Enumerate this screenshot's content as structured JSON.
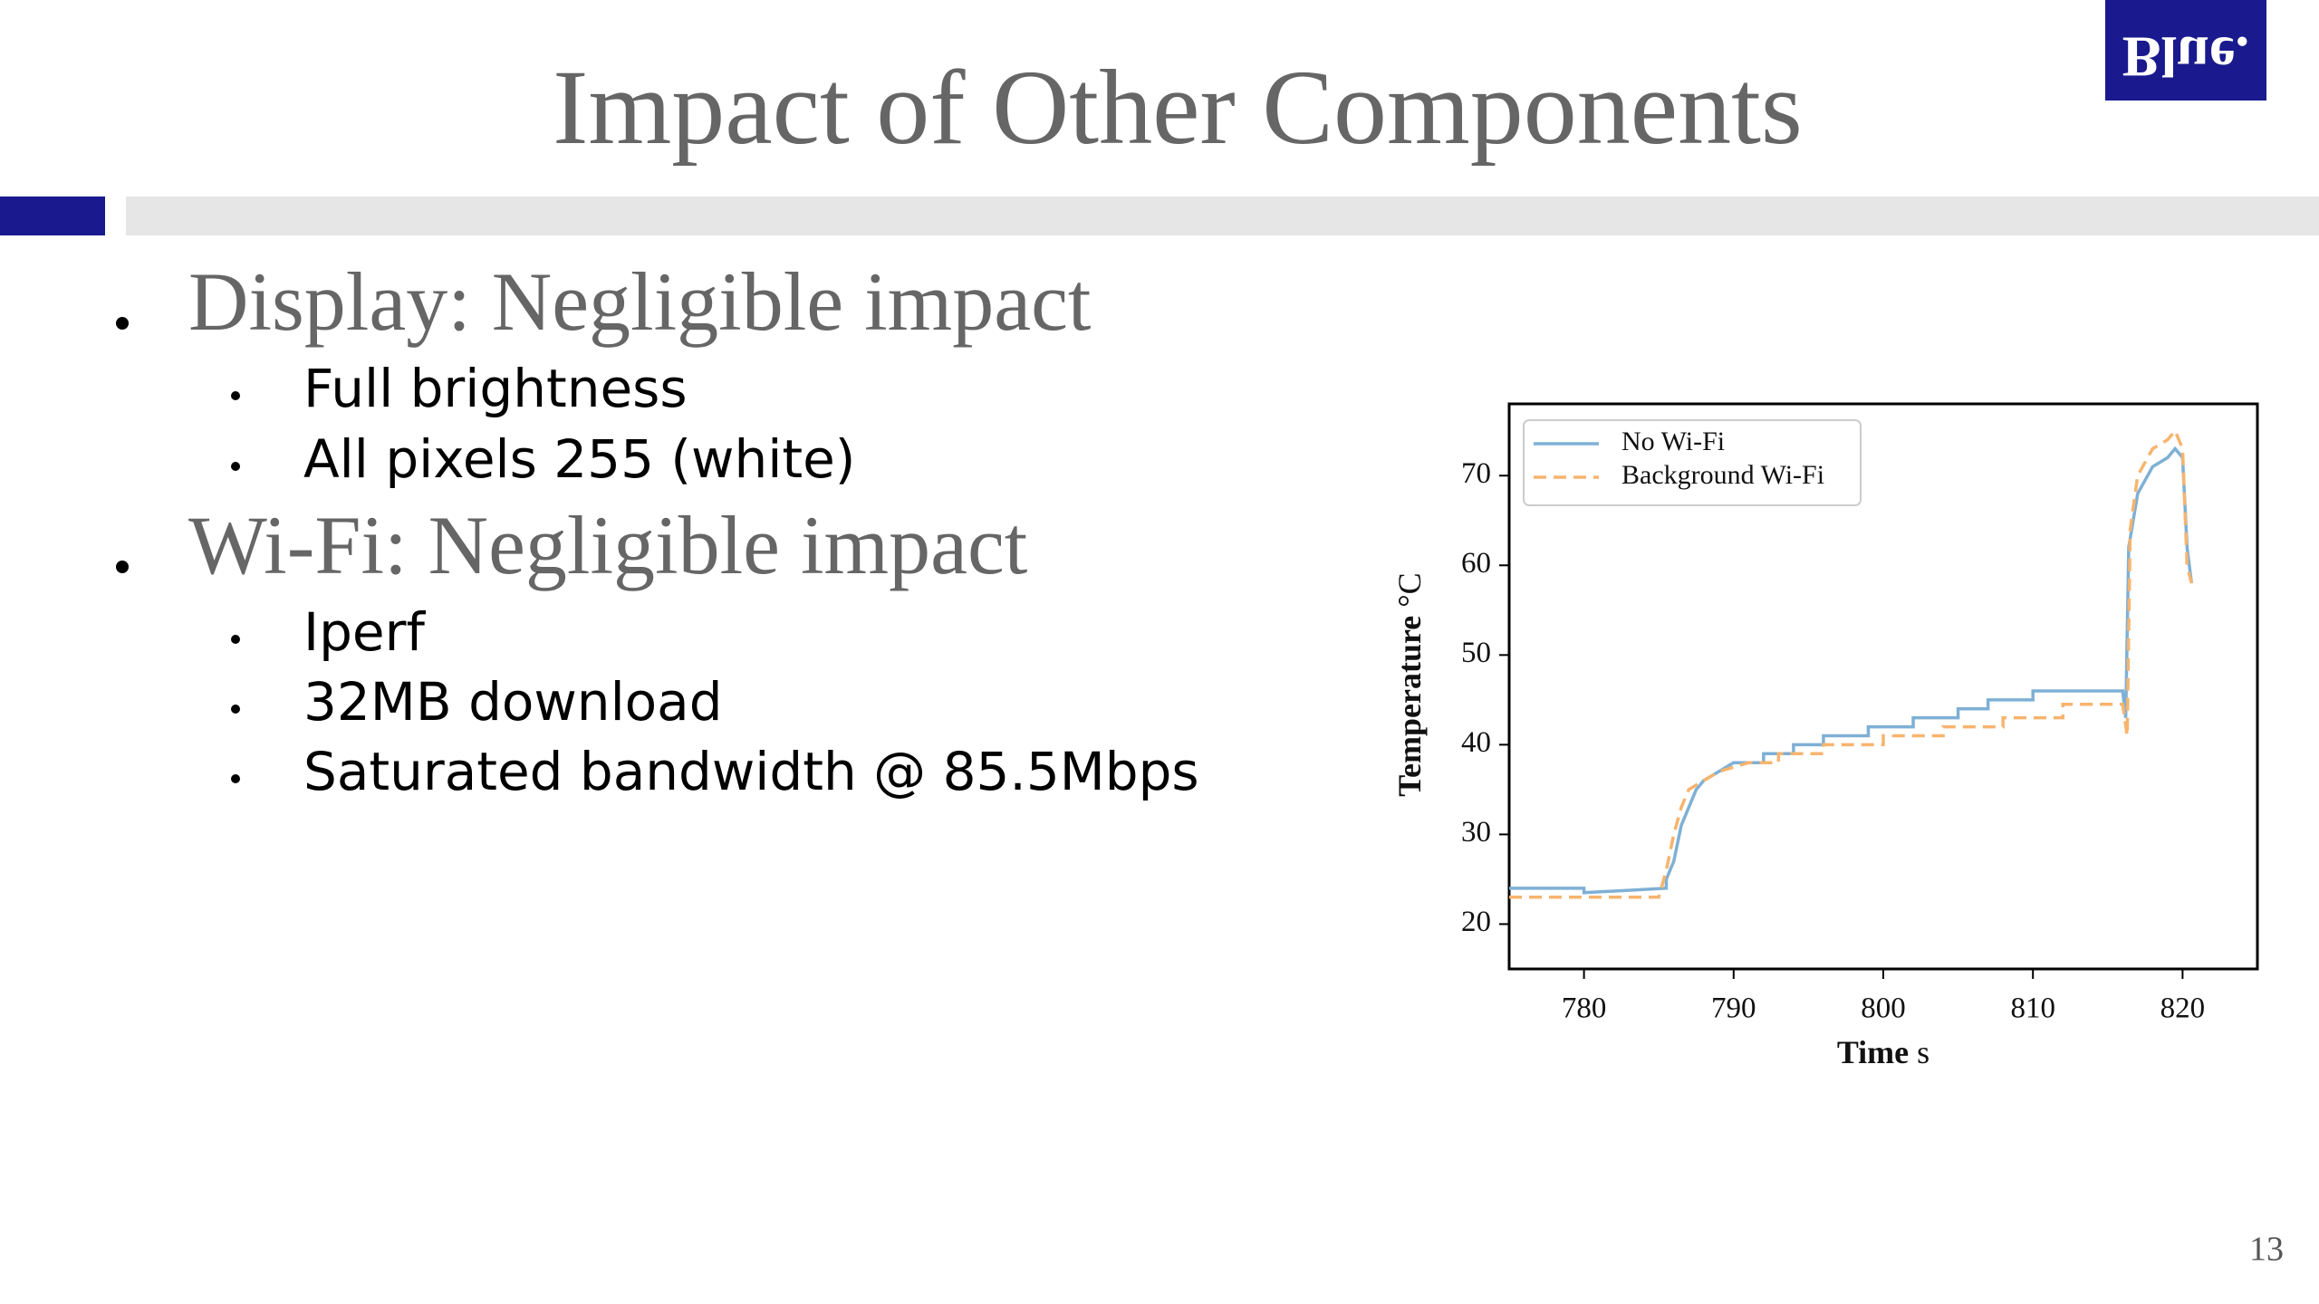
{
  "slide": {
    "title": "Impact of Other Components",
    "logo": "Blue.",
    "page_number": "13",
    "bullets": [
      {
        "text": "Display: Negligible impact",
        "sub": [
          "Full brightness",
          "All pixels 255 (white)"
        ]
      },
      {
        "text": "Wi-Fi: Negligible impact",
        "sub": [
          "Iperf",
          "32MB download",
          "Saturated bandwidth @ 85.5Mbps"
        ]
      }
    ]
  },
  "chart_data": {
    "type": "line",
    "xlabel": "Time",
    "xunit": "s",
    "ylabel": "Temperature",
    "yunit": "°C",
    "xlim": [
      775,
      825
    ],
    "ylim": [
      15,
      78
    ],
    "xticks": [
      780,
      790,
      800,
      810,
      820
    ],
    "yticks": [
      20,
      30,
      40,
      50,
      60,
      70
    ],
    "legend": "upper left",
    "series": [
      {
        "name": "No Wi-Fi",
        "color": "#7eb0d5",
        "dash": false,
        "x": [
          775,
          780,
          780,
          785.5,
          785.5,
          786,
          786.5,
          787,
          787.5,
          788,
          789,
          790,
          792,
          792,
          794,
          794,
          796,
          796,
          799,
          799,
          802,
          802,
          805,
          805,
          807,
          807,
          810,
          810,
          816,
          816.2,
          816.4,
          817,
          818,
          819,
          819.5,
          820,
          820.3,
          820.6
        ],
        "values": [
          24,
          24,
          23.5,
          24,
          25,
          27,
          31,
          33,
          35,
          36,
          37,
          38,
          38,
          39,
          39,
          40,
          40,
          41,
          41,
          42,
          42,
          43,
          43,
          44,
          44,
          45,
          45,
          46,
          46,
          43,
          62,
          68,
          71,
          72,
          73,
          72,
          62,
          58
        ]
      },
      {
        "name": "Background Wi-Fi",
        "color": "#f7b46e",
        "dash": true,
        "x": [
          775,
          785,
          785.5,
          786,
          786.5,
          787,
          788,
          789,
          790,
          791,
          793,
          793,
          796,
          796,
          800,
          800,
          804,
          804,
          808,
          808,
          812,
          812,
          816,
          816.3,
          816.5,
          817,
          818,
          819,
          819.5,
          820,
          820.3,
          820.6
        ],
        "values": [
          23,
          23,
          26,
          30,
          33,
          35,
          36,
          37,
          37.5,
          38,
          38,
          39,
          39,
          40,
          40,
          41,
          41,
          42,
          42,
          43,
          43,
          44.5,
          44.5,
          41,
          64,
          70,
          73,
          74,
          75,
          73,
          60,
          58
        ]
      }
    ]
  }
}
